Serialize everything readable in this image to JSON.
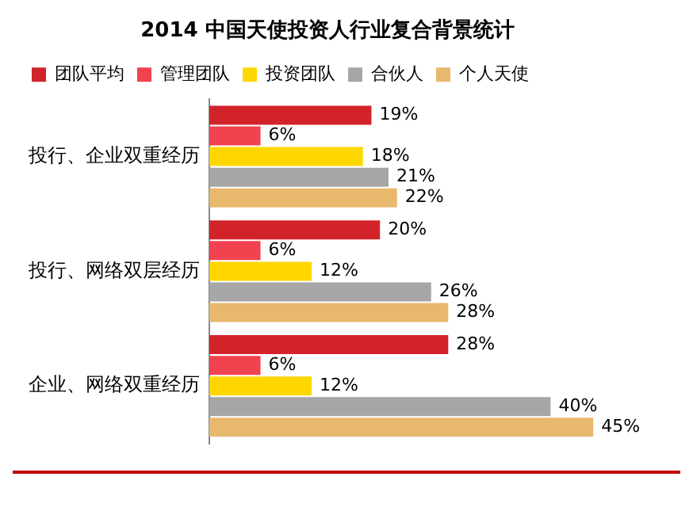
{
  "chart_data": {
    "type": "bar",
    "orientation": "horizontal",
    "title": "2014 中国天使投资人行业复合背景统计",
    "categories": [
      "投行、企业双重经历",
      "投行、网络双层经历",
      "企业、网络双重经历"
    ],
    "series": [
      {
        "name": "团队平均",
        "color": "#d2232a",
        "values": [
          19,
          20,
          28
        ],
        "value_labels": [
          "19%",
          "20%",
          "28%"
        ]
      },
      {
        "name": "管理团队",
        "color": "#f0434f",
        "values": [
          6,
          6,
          6
        ],
        "value_labels": [
          "6%",
          "6%",
          "6%"
        ]
      },
      {
        "name": "投资团队",
        "color": "#ffd700",
        "values": [
          18,
          12,
          12
        ],
        "value_labels": [
          "18%",
          "12%",
          "12%"
        ]
      },
      {
        "name": "合伙人",
        "color": "#a6a6a6",
        "values": [
          21,
          26,
          40
        ],
        "value_labels": [
          "21%",
          "26%",
          "40%"
        ]
      },
      {
        "name": "个人天使",
        "color": "#e8b86d",
        "values": [
          22,
          28,
          45
        ],
        "value_labels": [
          "22%",
          "28%",
          "45%"
        ]
      }
    ],
    "legend": "top",
    "tick_labels": "y"
  }
}
